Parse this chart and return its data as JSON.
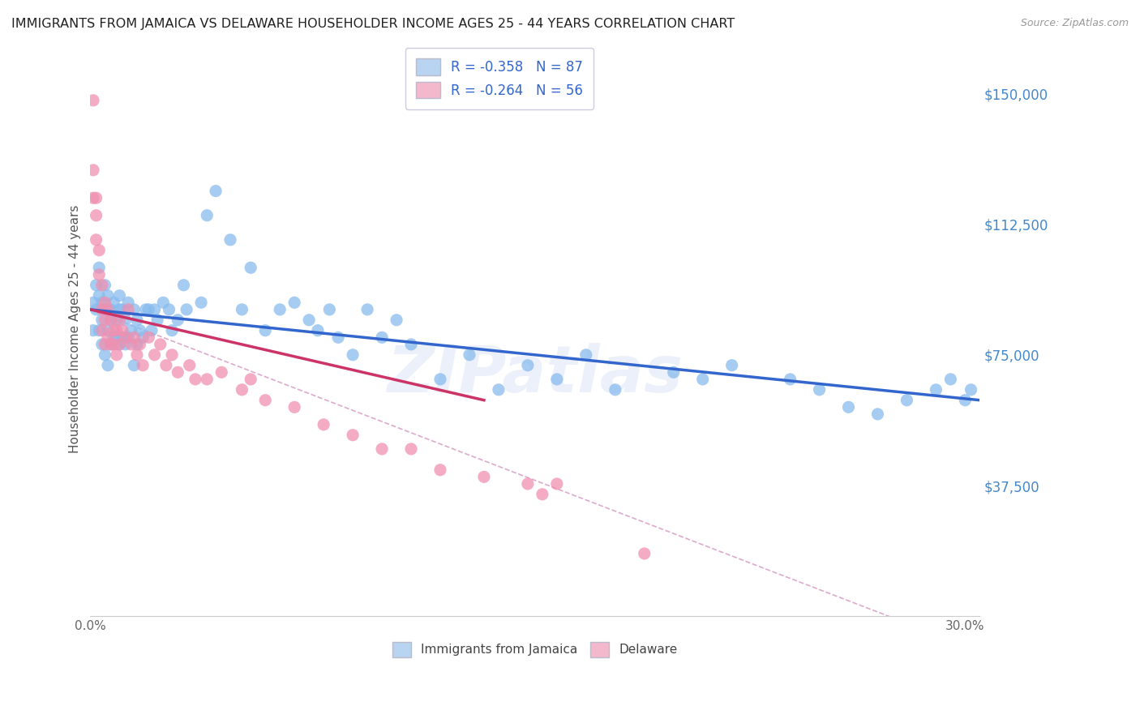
{
  "title": "IMMIGRANTS FROM JAMAICA VS DELAWARE HOUSEHOLDER INCOME AGES 25 - 44 YEARS CORRELATION CHART",
  "source": "Source: ZipAtlas.com",
  "ylabel": "Householder Income Ages 25 - 44 years",
  "ytick_labels": [
    "$37,500",
    "$75,000",
    "$112,500",
    "$150,000"
  ],
  "ytick_values": [
    37500,
    75000,
    112500,
    150000
  ],
  "ylim": [
    0,
    165000
  ],
  "xlim": [
    0,
    0.305
  ],
  "legend_entries": [
    {
      "label": "R = -0.358   N = 87",
      "color": "#b8d4f0"
    },
    {
      "label": "R = -0.264   N = 56",
      "color": "#f4b8cc"
    }
  ],
  "legend_bottom": [
    {
      "label": "Immigrants from Jamaica",
      "color": "#b8d4f0"
    },
    {
      "label": "Delaware",
      "color": "#f4b8cc"
    }
  ],
  "watermark": "ZIPatlas",
  "blue_scatter_x": [
    0.001,
    0.001,
    0.002,
    0.002,
    0.003,
    0.003,
    0.003,
    0.004,
    0.004,
    0.004,
    0.005,
    0.005,
    0.005,
    0.006,
    0.006,
    0.006,
    0.007,
    0.007,
    0.007,
    0.008,
    0.008,
    0.009,
    0.009,
    0.01,
    0.01,
    0.01,
    0.011,
    0.011,
    0.012,
    0.012,
    0.013,
    0.013,
    0.014,
    0.015,
    0.015,
    0.016,
    0.016,
    0.017,
    0.018,
    0.019,
    0.02,
    0.021,
    0.022,
    0.023,
    0.025,
    0.027,
    0.028,
    0.03,
    0.032,
    0.033,
    0.038,
    0.04,
    0.043,
    0.048,
    0.052,
    0.055,
    0.06,
    0.065,
    0.07,
    0.075,
    0.078,
    0.082,
    0.085,
    0.09,
    0.095,
    0.1,
    0.105,
    0.11,
    0.12,
    0.13,
    0.14,
    0.15,
    0.16,
    0.17,
    0.18,
    0.2,
    0.21,
    0.22,
    0.24,
    0.25,
    0.26,
    0.27,
    0.28,
    0.29,
    0.295,
    0.3,
    0.302
  ],
  "blue_scatter_y": [
    90000,
    82000,
    88000,
    95000,
    100000,
    92000,
    82000,
    90000,
    85000,
    78000,
    95000,
    88000,
    75000,
    92000,
    82000,
    72000,
    88000,
    85000,
    78000,
    90000,
    80000,
    85000,
    80000,
    88000,
    92000,
    78000,
    88000,
    80000,
    85000,
    78000,
    90000,
    80000,
    82000,
    88000,
    72000,
    85000,
    78000,
    82000,
    80000,
    88000,
    88000,
    82000,
    88000,
    85000,
    90000,
    88000,
    82000,
    85000,
    95000,
    88000,
    90000,
    115000,
    122000,
    108000,
    88000,
    100000,
    82000,
    88000,
    90000,
    85000,
    82000,
    88000,
    80000,
    75000,
    88000,
    80000,
    85000,
    78000,
    68000,
    75000,
    65000,
    72000,
    68000,
    75000,
    65000,
    70000,
    68000,
    72000,
    68000,
    65000,
    60000,
    58000,
    62000,
    65000,
    68000,
    62000,
    65000
  ],
  "pink_scatter_x": [
    0.001,
    0.001,
    0.001,
    0.002,
    0.002,
    0.002,
    0.003,
    0.003,
    0.004,
    0.004,
    0.004,
    0.005,
    0.005,
    0.005,
    0.006,
    0.006,
    0.007,
    0.007,
    0.008,
    0.008,
    0.009,
    0.009,
    0.01,
    0.01,
    0.011,
    0.012,
    0.013,
    0.014,
    0.015,
    0.016,
    0.017,
    0.018,
    0.02,
    0.022,
    0.024,
    0.026,
    0.028,
    0.03,
    0.034,
    0.036,
    0.04,
    0.045,
    0.052,
    0.055,
    0.06,
    0.07,
    0.08,
    0.09,
    0.1,
    0.11,
    0.12,
    0.135,
    0.15,
    0.155,
    0.16,
    0.19
  ],
  "pink_scatter_y": [
    148000,
    128000,
    120000,
    120000,
    115000,
    108000,
    105000,
    98000,
    95000,
    88000,
    82000,
    90000,
    85000,
    78000,
    88000,
    80000,
    85000,
    78000,
    82000,
    78000,
    82000,
    75000,
    85000,
    78000,
    82000,
    80000,
    88000,
    78000,
    80000,
    75000,
    78000,
    72000,
    80000,
    75000,
    78000,
    72000,
    75000,
    70000,
    72000,
    68000,
    68000,
    70000,
    65000,
    68000,
    62000,
    60000,
    55000,
    52000,
    48000,
    48000,
    42000,
    40000,
    38000,
    35000,
    38000,
    18000
  ],
  "blue_line_x": [
    0.0,
    0.305
  ],
  "blue_line_y": [
    88000,
    62000
  ],
  "pink_line_x": [
    0.0,
    0.135
  ],
  "pink_line_y": [
    88000,
    62000
  ],
  "dashed_line_x": [
    0.0,
    0.305
  ],
  "dashed_line_y": [
    88000,
    -10000
  ],
  "scatter_color_blue": "#88BBEE",
  "scatter_color_pink": "#F090B0",
  "line_color_blue": "#3366CC",
  "line_color_pink": "#CC3366",
  "dashed_line_color": "#DDAACC",
  "title_color": "#222222",
  "source_color": "#999999",
  "axis_label_color": "#555555",
  "tick_color_right": "#4488CC",
  "background_color": "#FFFFFF",
  "grid_color": "#DDDDEE"
}
